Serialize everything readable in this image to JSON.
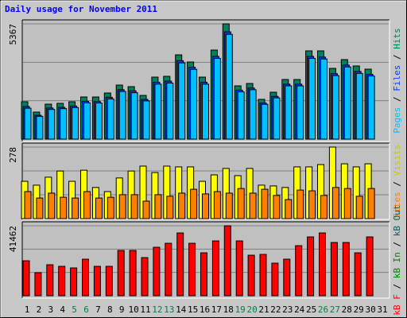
{
  "chart_data": [
    {
      "type": "bar",
      "title": "Daily usage for November 2011",
      "title_color": "#0000ff",
      "ylim": [
        0,
        5367
      ],
      "yticks": [
        5367
      ],
      "legend_separator": " / ",
      "series": [
        {
          "name": "Pages",
          "color": "#00c0ff",
          "values": [
            1440,
            1060,
            1380,
            1420,
            1470,
            1690,
            1680,
            1870,
            2220,
            2160,
            1780,
            2560,
            2610,
            3550,
            3250,
            2560,
            3760,
            4880,
            2200,
            2300,
            1620,
            1920,
            2480,
            2480,
            3760,
            3730,
            2960,
            3360,
            3060,
            2940,
            null
          ]
        },
        {
          "name": "Files",
          "color": "#0040ff",
          "values": [
            1520,
            1110,
            1450,
            1480,
            1540,
            1760,
            1750,
            1950,
            2300,
            2250,
            1850,
            2650,
            2700,
            3650,
            3350,
            2650,
            3850,
            4995,
            2280,
            2380,
            1680,
            1990,
            2560,
            2560,
            3850,
            3820,
            3050,
            3450,
            3150,
            3020,
            null
          ]
        },
        {
          "name": "Hits",
          "color": "#00805c",
          "values": [
            1740,
            1259,
            1629,
            1666,
            1740,
            1962,
            1962,
            2147,
            2517,
            2443,
            2036,
            2887,
            2924,
            3924,
            3591,
            2887,
            4146,
            5367,
            2480,
            2591,
            1851,
            2184,
            2776,
            2776,
            4109,
            4109,
            3294,
            3702,
            3406,
            3258,
            null
          ]
        }
      ]
    },
    {
      "type": "bar",
      "ylim": [
        0,
        278
      ],
      "yticks": [
        278
      ],
      "legend_separator": " / ",
      "series": [
        {
          "name": "Sites",
          "color": "#ff8000",
          "values": [
            105,
            80,
            99,
            83,
            80,
            105,
            80,
            83,
            93,
            93,
            68,
            93,
            87,
            99,
            114,
            96,
            105,
            99,
            117,
            99,
            114,
            90,
            74,
            111,
            108,
            90,
            121,
            117,
            87,
            117,
            null
          ]
        },
        {
          "name": "Visits",
          "color": "#ffff00",
          "legend_color": "#c8c800",
          "values": [
            145,
            130,
            161,
            185,
            145,
            188,
            121,
            105,
            158,
            185,
            204,
            179,
            204,
            201,
            201,
            145,
            170,
            195,
            167,
            195,
            130,
            127,
            121,
            201,
            201,
            210,
            278,
            213,
            201,
            213,
            null
          ]
        }
      ]
    },
    {
      "type": "bar",
      "ylim": [
        0,
        41462
      ],
      "yticks": [
        41462
      ],
      "legend_separator": " / ",
      "categories": [
        "1",
        "2",
        "3",
        "4",
        "5",
        "6",
        "7",
        "8",
        "9",
        "10",
        "11",
        "12",
        "13",
        "14",
        "15",
        "16",
        "17",
        "18",
        "19",
        "20",
        "21",
        "22",
        "23",
        "24",
        "25",
        "26",
        "27",
        "28",
        "29",
        "30",
        "31"
      ],
      "category_colors": [
        "#000000",
        "#000000",
        "#000000",
        "#000000",
        "#008040",
        "#008040",
        "#000000",
        "#000000",
        "#000000",
        "#000000",
        "#000000",
        "#008040",
        "#008040",
        "#000000",
        "#000000",
        "#000000",
        "#000000",
        "#000000",
        "#008040",
        "#008040",
        "#000000",
        "#000000",
        "#000000",
        "#000000",
        "#000000",
        "#008040",
        "#008040",
        "#000000",
        "#000000",
        "#000000",
        "#000000"
      ],
      "series": [
        {
          "name": "kB F",
          "color": "#ff0000",
          "values": [
            20724,
            13659,
            18369,
            17427,
            16485,
            21666,
            17427,
            17427,
            26847,
            26847,
            22608,
            28731,
            31086,
            37209,
            31086,
            25434,
            32499,
            41462,
            32499,
            24021,
            24492,
            19311,
            21666,
            29673,
            34854,
            37209,
            31557,
            31557,
            25434,
            34854,
            null
          ]
        },
        {
          "name": "kB In",
          "color": "#008000",
          "values": [
            null,
            null,
            null,
            null,
            null,
            null,
            null,
            null,
            null,
            null,
            null,
            null,
            null,
            null,
            null,
            null,
            null,
            null,
            null,
            null,
            null,
            null,
            null,
            null,
            null,
            null,
            null,
            null,
            null,
            null,
            null
          ]
        },
        {
          "name": "kB Out",
          "color": "#006060",
          "values": [
            null,
            null,
            null,
            null,
            null,
            null,
            null,
            null,
            null,
            null,
            null,
            null,
            null,
            null,
            null,
            null,
            null,
            null,
            null,
            null,
            null,
            null,
            null,
            null,
            null,
            null,
            null,
            null,
            null,
            null,
            null
          ]
        }
      ]
    }
  ]
}
